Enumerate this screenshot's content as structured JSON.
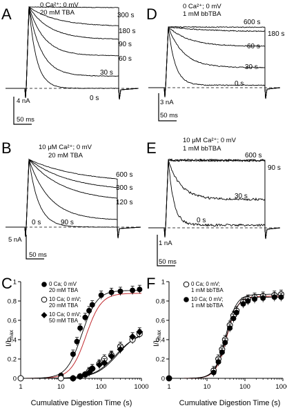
{
  "panels": {
    "A": {
      "letter": "A",
      "cond": [
        "0 Ca²⁺; 0 mV",
        "20 mM TBA"
      ],
      "traces": [
        "300 s",
        "180 s",
        "90 s",
        "60 s",
        "30 s",
        "0 s"
      ],
      "scale_y": "4 nA",
      "scale_x": "50 ms"
    },
    "B": {
      "letter": "B",
      "cond": [
        "10 μM Ca²⁺;  0 mV",
        "20 mM TBA"
      ],
      "traces": [
        "600 s",
        "300 s",
        "120 s",
        "90 s",
        "0 s"
      ],
      "scale_y": "5 nA",
      "scale_x": "50 ms"
    },
    "D": {
      "letter": "D",
      "cond": [
        "0 Ca²⁺; 0 mV",
        "1 mM bbTBA"
      ],
      "traces": [
        "600 s",
        "180 s",
        "60 s",
        "30 s",
        "0 s"
      ],
      "scale_y": "3 nA",
      "scale_x": "50 ms"
    },
    "E": {
      "letter": "E",
      "cond": [
        "10 μM Ca²⁺;  0 mV",
        "1 mM bbTBA"
      ],
      "traces": [
        "600 s",
        "90 s",
        "30 s",
        "0 s"
      ],
      "scale_y": "1 nA",
      "scale_x": "50 ms"
    }
  },
  "chart_data": [
    {
      "panel": "C",
      "type": "scatter",
      "xlabel": "Cumulative Digestion Time (s)",
      "ylabel_main": "I/I",
      "ylabel_sub": "max",
      "xscale": "log",
      "xlim": [
        1,
        1000
      ],
      "ylim": [
        0,
        1.0
      ],
      "xticks": [
        "1",
        "10",
        "100",
        "1000"
      ],
      "yticks": [
        "0",
        "0.2",
        "0.4",
        "0.6",
        "0.8",
        "1"
      ],
      "legend": [
        {
          "lines": [
            "0 Ca; 0 mV",
            "20 mM TBA"
          ],
          "marker": "filled-circle"
        },
        {
          "lines": [
            "10 Ca; 0 mV;",
            "20 mM TBA"
          ],
          "marker": "open-circle"
        },
        {
          "lines": [
            "10 Ca; 0 mV;",
            "50 mM TBA"
          ],
          "marker": "diamond"
        }
      ],
      "series": [
        {
          "marker": "filled-circle",
          "points": [
            [
              1,
              0
            ],
            [
              10,
              0.03
            ],
            [
              20,
              0.25
            ],
            [
              25,
              0.38
            ],
            [
              30,
              0.52
            ],
            [
              40,
              0.63
            ],
            [
              50,
              0.7
            ],
            [
              60,
              0.76
            ],
            [
              100,
              0.86
            ],
            [
              180,
              0.89
            ],
            [
              300,
              0.9
            ],
            [
              600,
              0.91
            ],
            [
              900,
              0.92
            ]
          ],
          "fit": {
            "top": 0.91,
            "ec50": 33,
            "n": 2.3
          }
        },
        {
          "marker": "open-circle",
          "points": [
            [
              1,
              0
            ],
            [
              10,
              0.0
            ],
            [
              20,
              0.0
            ],
            [
              30,
              0.02
            ],
            [
              40,
              0.04
            ],
            [
              50,
              0.07
            ],
            [
              60,
              0.1
            ],
            [
              90,
              0.15
            ],
            [
              120,
              0.2
            ],
            [
              180,
              0.24
            ],
            [
              300,
              0.33
            ],
            [
              600,
              0.4
            ],
            [
              900,
              0.46
            ]
          ],
          "fit": {
            "top": 0.48,
            "ec50": 230,
            "n": 1.6
          }
        },
        {
          "marker": "diamond",
          "points": [
            [
              20,
              0.0
            ],
            [
              30,
              0.02
            ],
            [
              40,
              0.04
            ],
            [
              50,
              0.06
            ],
            [
              60,
              0.1
            ],
            [
              90,
              0.14
            ],
            [
              120,
              0.16
            ],
            [
              180,
              0.23
            ],
            [
              300,
              0.3
            ],
            [
              600,
              0.43
            ],
            [
              900,
              0.48
            ]
          ],
          "fit": {
            "top": 0.5,
            "ec50": 260,
            "n": 1.6
          }
        }
      ],
      "ref_curve": {
        "top": 0.88,
        "ec50": 42,
        "n": 2.3
      }
    },
    {
      "panel": "F",
      "type": "scatter",
      "xlabel": "Cumulative Digestion Time (s)",
      "ylabel_main": "I/I",
      "ylabel_sub": "max",
      "xscale": "log",
      "xlim": [
        1,
        1000
      ],
      "ylim": [
        0,
        1.0
      ],
      "xticks": [
        "1",
        "10",
        "100",
        "1000"
      ],
      "yticks": [
        "0",
        "0.2",
        "0.4",
        "0.6",
        "0.8",
        "1"
      ],
      "legend": [
        {
          "lines": [
            "0 Ca; 0 mV;",
            "1 mM bbTBA"
          ],
          "marker": "open-circle"
        },
        {
          "lines": [
            "10 Ca; 0 mV;",
            "1 mM bbTBA"
          ],
          "marker": "filled-circle"
        }
      ],
      "series": [
        {
          "marker": "open-circle",
          "points": [
            [
              1,
              0
            ],
            [
              15,
              0.08
            ],
            [
              20,
              0.2
            ],
            [
              25,
              0.3
            ],
            [
              30,
              0.4
            ],
            [
              40,
              0.55
            ],
            [
              50,
              0.65
            ],
            [
              60,
              0.7
            ],
            [
              90,
              0.79
            ],
            [
              120,
              0.82
            ],
            [
              180,
              0.84
            ],
            [
              300,
              0.85
            ],
            [
              600,
              0.86
            ],
            [
              900,
              0.87
            ]
          ],
          "fit": {
            "top": 0.87,
            "ec50": 31,
            "n": 3.0
          }
        },
        {
          "marker": "filled-circle",
          "points": [
            [
              1,
              0
            ],
            [
              15,
              0.06
            ],
            [
              20,
              0.17
            ],
            [
              25,
              0.27
            ],
            [
              30,
              0.37
            ],
            [
              40,
              0.52
            ],
            [
              50,
              0.62
            ],
            [
              60,
              0.68
            ],
            [
              90,
              0.77
            ],
            [
              120,
              0.8
            ],
            [
              180,
              0.82
            ],
            [
              300,
              0.83
            ],
            [
              600,
              0.84
            ],
            [
              900,
              0.84
            ]
          ],
          "fit": {
            "top": 0.84,
            "ec50": 32,
            "n": 3.0
          }
        }
      ],
      "ref_curve": {
        "top": 0.85,
        "ec50": 33,
        "n": 3.0
      }
    }
  ]
}
